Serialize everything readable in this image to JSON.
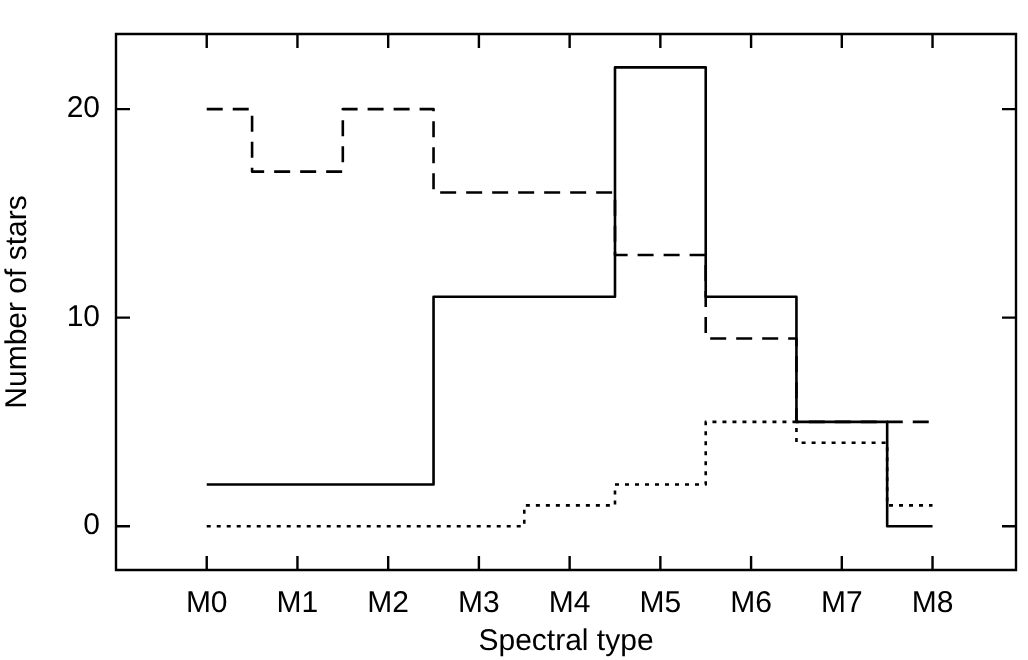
{
  "chart_data": {
    "type": "step",
    "xlabel": "Spectral type",
    "ylabel": "Number of stars",
    "categories": [
      "M0",
      "M1",
      "M2",
      "M3",
      "M4",
      "M5",
      "M6",
      "M7",
      "M8"
    ],
    "series": [
      {
        "color": "#000000",
        "line_style": "solid",
        "values": [
          2,
          2,
          2,
          11,
          11,
          22,
          11,
          5,
          0
        ]
      },
      {
        "color": "#000000",
        "line_style": "dashed",
        "values": [
          20,
          17,
          20,
          16,
          16,
          13,
          9,
          5,
          5
        ]
      },
      {
        "color": "#000000",
        "line_style": "dotted",
        "values": [
          0,
          0,
          0,
          0,
          1,
          2,
          5,
          4,
          1
        ]
      }
    ],
    "ylim": [
      -2.1,
      23.6
    ],
    "yticks": [
      0,
      10,
      20
    ],
    "grid": false,
    "legend": false
  }
}
